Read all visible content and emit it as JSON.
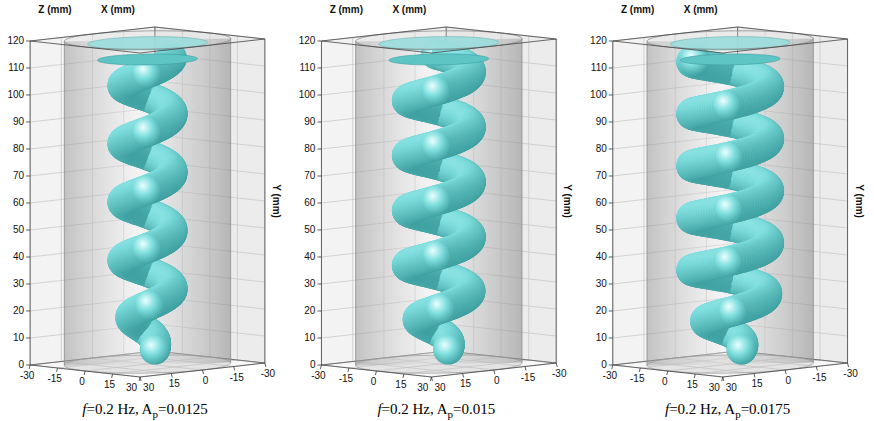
{
  "chart_data": [
    {
      "type": "isosurface3d",
      "x_label": "X (mm)",
      "y_label": "Y (mm)",
      "z_label": "Z (mm)",
      "xlim": [
        -30,
        30
      ],
      "xticks": [
        -30,
        -15,
        0,
        15,
        30
      ],
      "ylim": [
        0,
        120
      ],
      "yticks": [
        0,
        10,
        20,
        30,
        40,
        50,
        60,
        70,
        80,
        90,
        100,
        110,
        120
      ],
      "zlim": [
        -30,
        30
      ],
      "zticks": [
        -30,
        -15,
        0,
        15,
        30
      ],
      "caption": [
        {
          "text": "f",
          "style": "italic"
        },
        {
          "text": "=0.2 Hz, A"
        },
        {
          "text": "p",
          "style": "subscript"
        },
        {
          "text": "=0.0125"
        }
      ],
      "color": "#7fdede",
      "grid": true
    },
    {
      "type": "isosurface3d",
      "x_label": "X (mm)",
      "y_label": "Y (mm)",
      "z_label": "Z (mm)",
      "xlim": [
        -30,
        30
      ],
      "xticks": [
        -30,
        -15,
        0,
        15,
        30
      ],
      "ylim": [
        0,
        120
      ],
      "yticks": [
        0,
        10,
        20,
        30,
        40,
        50,
        60,
        70,
        80,
        90,
        100,
        110,
        120
      ],
      "zlim": [
        -30,
        30
      ],
      "zticks": [
        -30,
        -15,
        0,
        15,
        30
      ],
      "caption": [
        {
          "text": "f",
          "style": "italic"
        },
        {
          "text": "=0.2 Hz, A"
        },
        {
          "text": "p",
          "style": "subscript"
        },
        {
          "text": "=0.015"
        }
      ],
      "color": "#7fdede",
      "grid": true
    },
    {
      "type": "isosurface3d",
      "x_label": "X (mm)",
      "y_label": "Y (mm)",
      "z_label": "Z (mm)",
      "xlim": [
        -30,
        30
      ],
      "xticks": [
        -30,
        -15,
        0,
        15,
        30
      ],
      "ylim": [
        0,
        120
      ],
      "yticks": [
        0,
        10,
        20,
        30,
        40,
        50,
        60,
        70,
        80,
        90,
        100,
        110,
        120
      ],
      "zlim": [
        -30,
        30
      ],
      "zticks": [
        -30,
        -15,
        0,
        15,
        30
      ],
      "caption": [
        {
          "text": "f",
          "style": "italic"
        },
        {
          "text": "=0.2 Hz, A"
        },
        {
          "text": "p",
          "style": "subscript"
        },
        {
          "text": "=0.0175"
        }
      ],
      "color": "#7fdede",
      "grid": true
    }
  ]
}
